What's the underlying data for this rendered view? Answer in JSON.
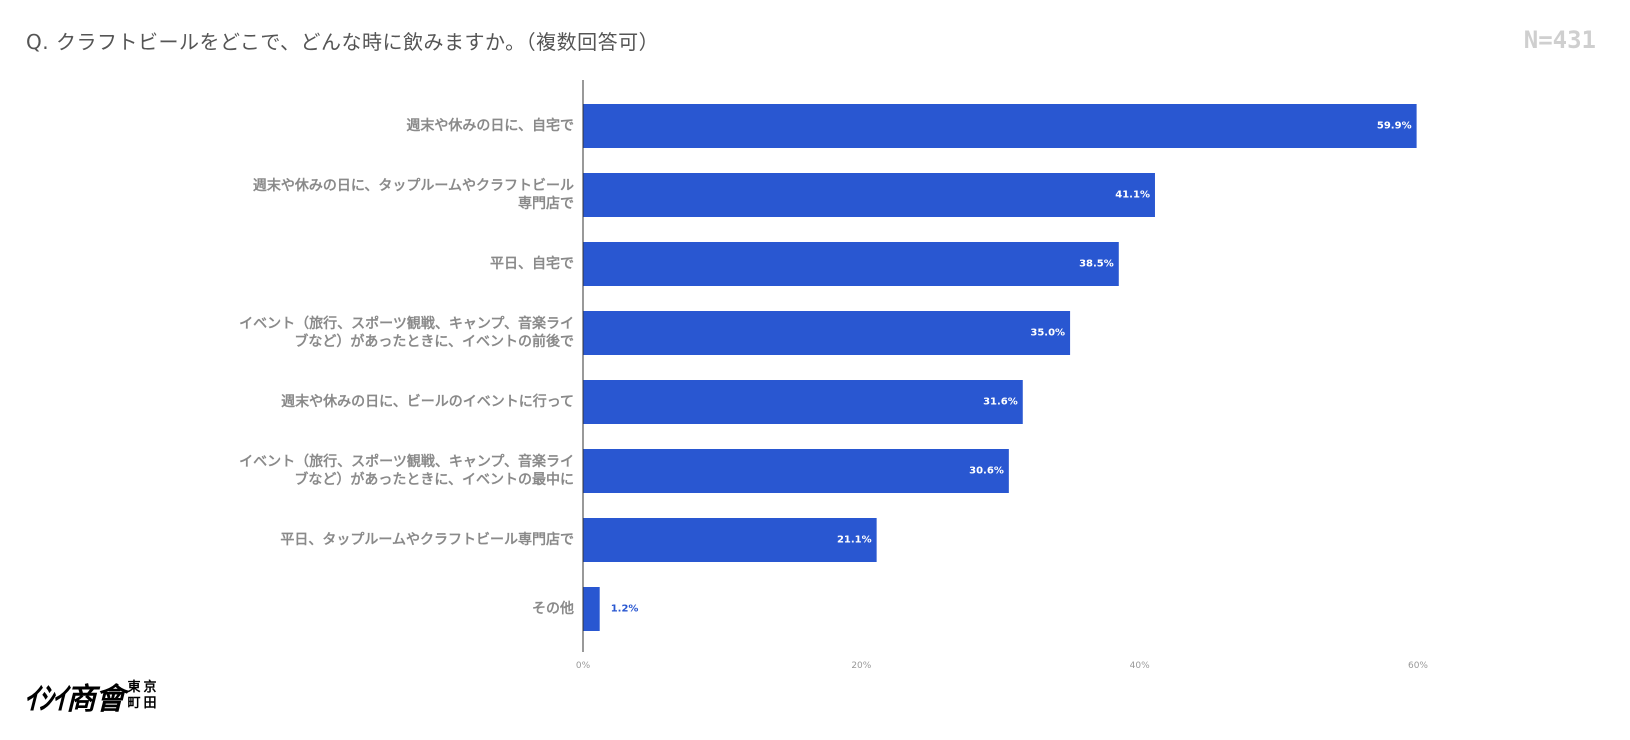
{
  "question": "Q. クラフトビールをどこで、どんな時に飲みますか。（複数回答可）",
  "sample_size": "N=431",
  "logo": {
    "text": "ｲｼｲ商會",
    "sub": [
      "東",
      "京",
      "町",
      "田"
    ]
  },
  "colors": {
    "bar": "#2957D1",
    "outside_label": "#2957D1",
    "inside_label": "#ffffff",
    "category_text": "#8a8a8a",
    "tick_text": "#999999",
    "axis_line": "#333333"
  },
  "chart_data": {
    "type": "bar",
    "orientation": "horizontal",
    "categories": [
      [
        "週末や休みの日に、自宅で"
      ],
      [
        "週末や休みの日に、タップルームやクラフトビール",
        "専門店で"
      ],
      [
        "平日、自宅で"
      ],
      [
        "イベント（旅行、スポーツ観戦、キャンプ、音楽ライ",
        "ブなど）があったときに、イベントの前後で"
      ],
      [
        "週末や休みの日に、ビールのイベントに行って"
      ],
      [
        "イベント（旅行、スポーツ観戦、キャンプ、音楽ライ",
        "ブなど）があったときに、イベントの最中に"
      ],
      [
        "平日、タップルームやクラフトビール専門店で"
      ],
      [
        "その他"
      ]
    ],
    "values": [
      59.9,
      41.1,
      38.5,
      35.0,
      31.6,
      30.6,
      21.1,
      1.2
    ],
    "value_labels": [
      "59.9%",
      "41.1%",
      "38.5%",
      "35.0%",
      "31.6%",
      "30.6%",
      "21.1%",
      "1.2%"
    ],
    "xlim": [
      0,
      60
    ],
    "xticks": [
      0,
      20,
      40,
      60
    ],
    "xtick_labels": [
      "0%",
      "20%",
      "40%",
      "60%"
    ],
    "xlabel": "",
    "ylabel": "",
    "grid": false,
    "legend": "none"
  }
}
